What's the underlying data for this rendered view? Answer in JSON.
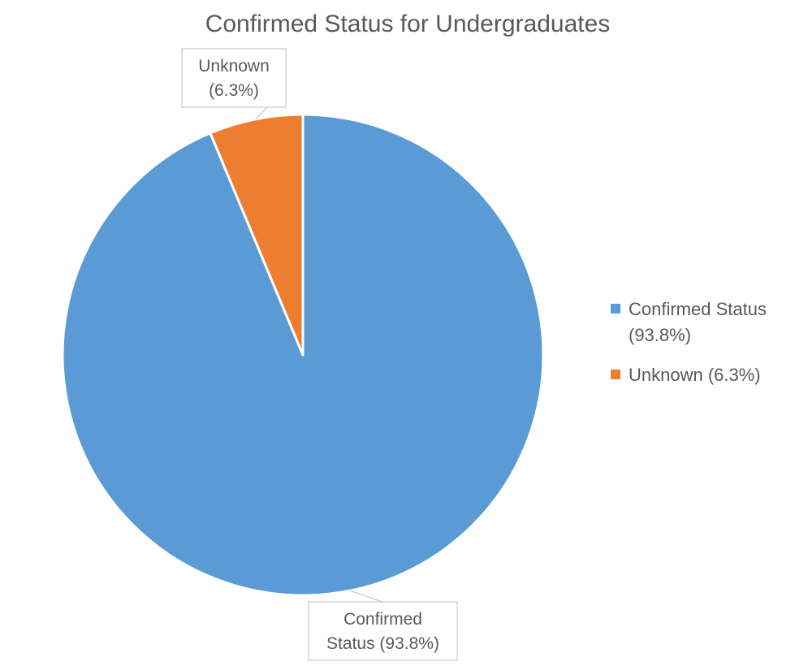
{
  "chart_data": {
    "type": "pie",
    "title": "Confirmed Status for Undergraduates",
    "categories": [
      "Confirmed Status (93.8%)",
      "Unknown (6.3%)"
    ],
    "values": [
      93.8,
      6.3
    ],
    "colors": [
      "#5B9BD5",
      "#ED7D31"
    ],
    "data_labels": [
      [
        "Confirmed",
        "Status (93.8%)"
      ],
      [
        "Unknown",
        "(6.3%)"
      ]
    ],
    "legend_entries": [
      [
        "Confirmed Status",
        "(93.8%)"
      ],
      [
        "Unknown (6.3%)"
      ]
    ],
    "legend_position": "right"
  }
}
